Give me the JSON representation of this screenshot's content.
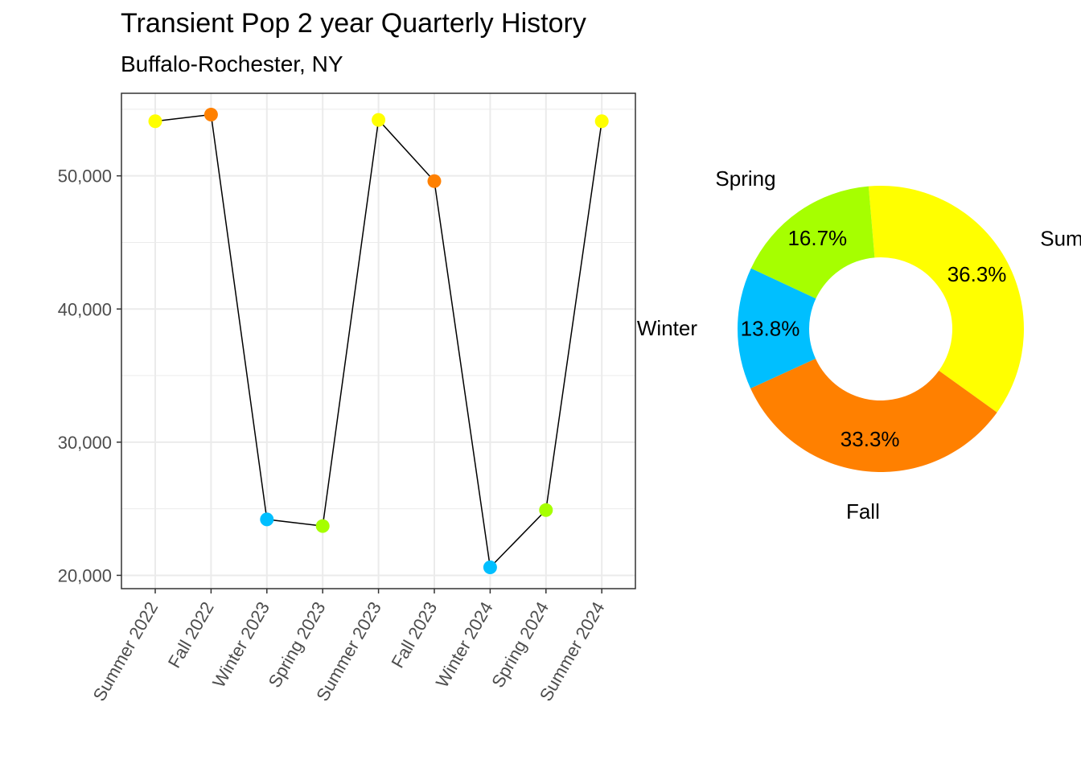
{
  "title": "Transient Pop 2 year Quarterly History",
  "subtitle": "Buffalo-Rochester, NY",
  "colors": {
    "Summer": "#ffff00",
    "Fall": "#ff8000",
    "Winter": "#00bfff",
    "Spring": "#a6ff00",
    "line": "#000000",
    "panel_border": "#333333",
    "grid": "#ebebeb"
  },
  "chart_data": [
    {
      "type": "line",
      "categories": [
        "Summer 2022",
        "Fall 2022",
        "Winter 2023",
        "Spring 2023",
        "Summer 2023",
        "Fall 2023",
        "Winter 2024",
        "Spring 2024",
        "Summer 2024"
      ],
      "season": [
        "Summer",
        "Fall",
        "Winter",
        "Spring",
        "Summer",
        "Fall",
        "Winter",
        "Spring",
        "Summer"
      ],
      "values": [
        54100,
        54600,
        24200,
        23700,
        54200,
        49600,
        20600,
        24900,
        54100
      ],
      "yticks": [
        20000,
        30000,
        40000,
        50000
      ],
      "ytick_labels": [
        "20,000",
        "30,000",
        "40,000",
        "50,000"
      ],
      "ylim": [
        19000,
        56200
      ],
      "grid": true,
      "legend": "none"
    },
    {
      "type": "pie",
      "donut": true,
      "slices": [
        {
          "label": "Summer",
          "value": 36.3,
          "pct_label": "36.3%"
        },
        {
          "label": "Fall",
          "value": 33.3,
          "pct_label": "33.3%"
        },
        {
          "label": "Winter",
          "value": 13.8,
          "pct_label": "13.8%"
        },
        {
          "label": "Spring",
          "value": 16.7,
          "pct_label": "16.7%"
        }
      ]
    }
  ]
}
